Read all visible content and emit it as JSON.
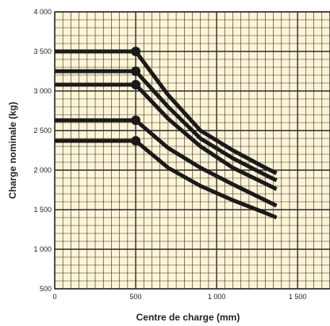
{
  "chart_data": {
    "type": "line",
    "title": "",
    "xlabel": "Centre de charge (mm)",
    "ylabel": "Charge nominale (kg)",
    "xlim": [
      0,
      1700
    ],
    "ylim": [
      500,
      4000
    ],
    "grid": true,
    "grid_minor_x": 50,
    "grid_minor_y": 100,
    "grid_major_x": 500,
    "grid_major_y": 500,
    "x_ticks": [
      {
        "value": 0,
        "label": "0"
      },
      {
        "value": 500,
        "label": "500"
      },
      {
        "value": 1000,
        "label": "1 000"
      },
      {
        "value": 1500,
        "label": "1 500"
      }
    ],
    "y_ticks": [
      {
        "value": 500,
        "label": "500"
      },
      {
        "value": 1000,
        "label": "1 000"
      },
      {
        "value": 1500,
        "label": "1 500"
      },
      {
        "value": 2000,
        "label": "2 000"
      },
      {
        "value": 2500,
        "label": "2 500"
      },
      {
        "value": 3000,
        "label": "3 000"
      },
      {
        "value": 3500,
        "label": "3 500"
      },
      {
        "value": 4000,
        "label": "4 000"
      }
    ],
    "colors": {
      "background": "#fff5d6",
      "grid": "#2a2a2a",
      "line": "#1a1a1a"
    },
    "series": [
      {
        "x": [
          0,
          500,
          700,
          900,
          1100,
          1300,
          1370
        ],
        "y": [
          3500,
          3500,
          2950,
          2500,
          2250,
          2030,
          1960
        ]
      },
      {
        "x": [
          0,
          500,
          700,
          900,
          1100,
          1300,
          1370
        ],
        "y": [
          3250,
          3250,
          2800,
          2400,
          2150,
          1940,
          1870
        ]
      },
      {
        "x": [
          0,
          500,
          700,
          900,
          1100,
          1300,
          1370
        ],
        "y": [
          3080,
          3080,
          2650,
          2300,
          2030,
          1830,
          1760
        ]
      },
      {
        "x": [
          0,
          500,
          700,
          900,
          1100,
          1300,
          1370
        ],
        "y": [
          2630,
          2630,
          2280,
          2030,
          1820,
          1620,
          1550
        ]
      },
      {
        "x": [
          0,
          500,
          700,
          900,
          1100,
          1300,
          1370
        ],
        "y": [
          2370,
          2370,
          2030,
          1800,
          1620,
          1460,
          1400
        ]
      }
    ]
  }
}
